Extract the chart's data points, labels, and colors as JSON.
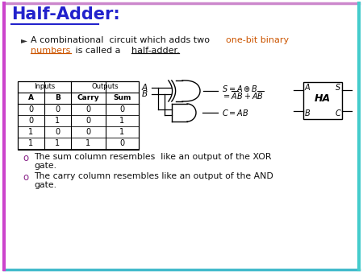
{
  "title": "Half-Adder:",
  "title_color": "#2222CC",
  "bg_color": "#FFFFFF",
  "border_left_color": "#CC44CC",
  "border_right_color": "#44CCCC",
  "bullet_highlight_color": "#CC5500",
  "table_col_headers": [
    "A",
    "B",
    "Carry",
    "Sum"
  ],
  "table_data": [
    [
      0,
      0,
      0,
      0
    ],
    [
      0,
      1,
      0,
      1
    ],
    [
      1,
      0,
      0,
      1
    ],
    [
      1,
      1,
      1,
      0
    ]
  ],
  "bullet2_text": "The sum column resembles like an output of the XOR\ngate.",
  "bullet3_text": "The carry column resembles like an output of the AND\ngate.",
  "bullet_o_color": "#882288",
  "text_color": "#111111"
}
